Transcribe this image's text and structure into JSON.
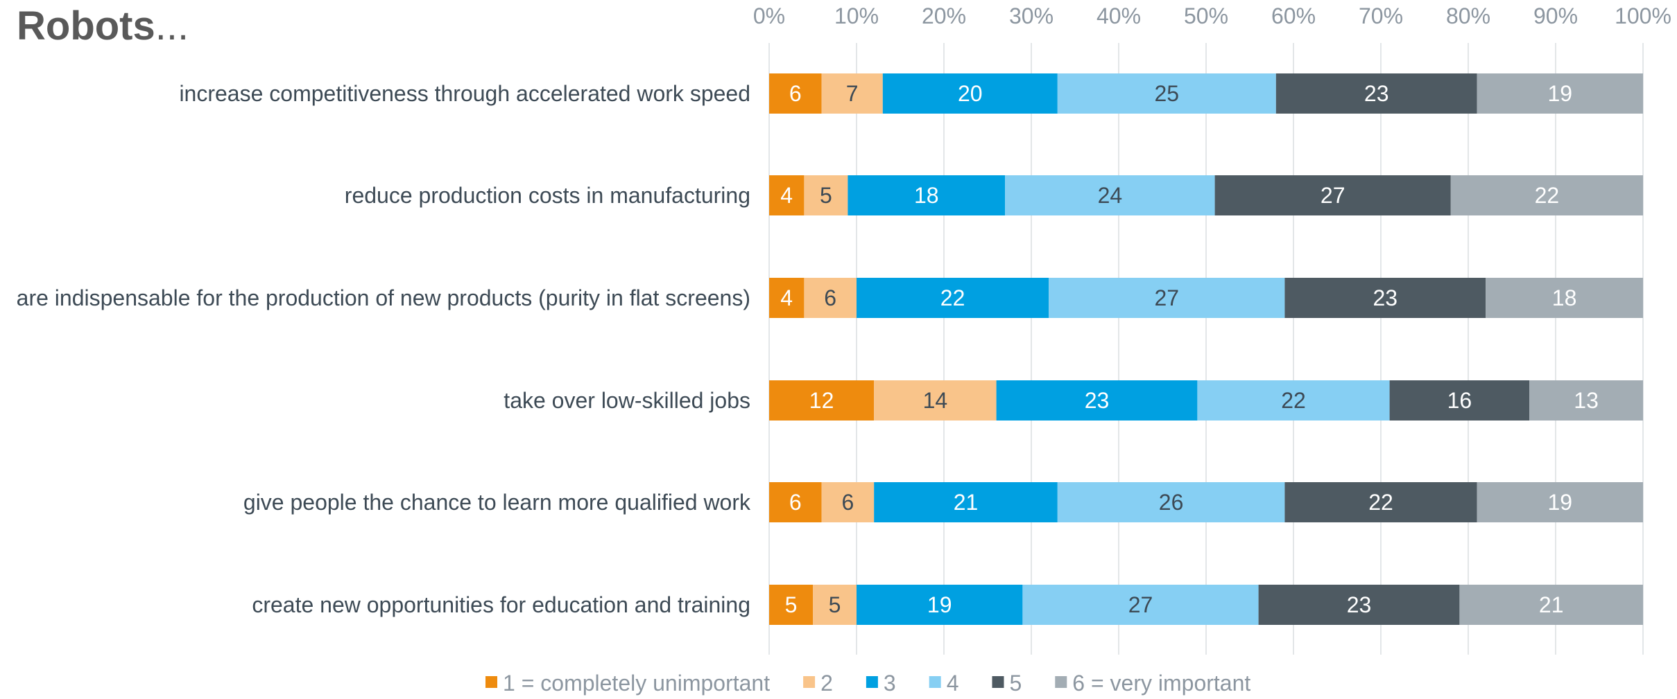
{
  "title": {
    "main": "Robots",
    "suffix": "..."
  },
  "chart_data": {
    "type": "bar",
    "orientation": "horizontal",
    "stacked": "percent",
    "title": "Robots...",
    "categories": [
      "increase competitiveness through accelerated work speed",
      "reduce production costs in manufacturing",
      "are indispensable for the production of new products (purity in flat screens)",
      "take over low-skilled jobs",
      "give people the chance to learn more qualified work",
      "create new opportunities for education and training"
    ],
    "series": [
      {
        "name": "1 = completely unimportant",
        "color": "#ee8b0e",
        "label_color": "#ffffff",
        "values": [
          6,
          4,
          4,
          12,
          6,
          5
        ]
      },
      {
        "name": "2",
        "color": "#f9c48a",
        "label_color": "#3d4a55",
        "values": [
          7,
          5,
          6,
          14,
          6,
          5
        ]
      },
      {
        "name": "3",
        "color": "#00a0e1",
        "label_color": "#ffffff",
        "values": [
          20,
          18,
          22,
          23,
          21,
          19
        ]
      },
      {
        "name": "4",
        "color": "#86cff3",
        "label_color": "#3d4a55",
        "values": [
          25,
          24,
          27,
          22,
          26,
          27
        ]
      },
      {
        "name": "5",
        "color": "#4e5a62",
        "label_color": "#ffffff",
        "values": [
          23,
          27,
          23,
          16,
          22,
          23
        ]
      },
      {
        "name": "6 = very important",
        "color": "#a3adb4",
        "label_color": "#ffffff",
        "values": [
          19,
          22,
          18,
          13,
          19,
          21
        ]
      }
    ],
    "x_ticks": [
      "0%",
      "10%",
      "20%",
      "30%",
      "40%",
      "50%",
      "60%",
      "70%",
      "80%",
      "90%",
      "100%"
    ],
    "xlim": [
      0,
      100
    ],
    "x_axis_position": "top",
    "grid": true,
    "legend_position": "bottom"
  }
}
